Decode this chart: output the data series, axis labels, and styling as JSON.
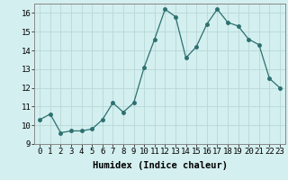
{
  "x": [
    0,
    1,
    2,
    3,
    4,
    5,
    6,
    7,
    8,
    9,
    10,
    11,
    12,
    13,
    14,
    15,
    16,
    17,
    18,
    19,
    20,
    21,
    22,
    23
  ],
  "y": [
    10.3,
    10.6,
    9.6,
    9.7,
    9.7,
    9.8,
    10.3,
    11.2,
    10.7,
    11.2,
    13.1,
    14.6,
    16.2,
    15.8,
    13.6,
    14.2,
    15.4,
    16.2,
    15.5,
    15.3,
    14.6,
    14.3,
    12.5,
    12.0
  ],
  "line_color": "#2d7070",
  "marker": "o",
  "marker_size": 2.5,
  "bg_color": "#d4efef",
  "grid_color": "#b8d8d8",
  "xlabel": "Humidex (Indice chaleur)",
  "xlabel_fontsize": 7.5,
  "tick_fontsize": 6.5,
  "ylim": [
    9,
    16.5
  ],
  "xlim": [
    -0.5,
    23.5
  ],
  "yticks": [
    9,
    10,
    11,
    12,
    13,
    14,
    15,
    16
  ],
  "xticks": [
    0,
    1,
    2,
    3,
    4,
    5,
    6,
    7,
    8,
    9,
    10,
    11,
    12,
    13,
    14,
    15,
    16,
    17,
    18,
    19,
    20,
    21,
    22,
    23
  ]
}
